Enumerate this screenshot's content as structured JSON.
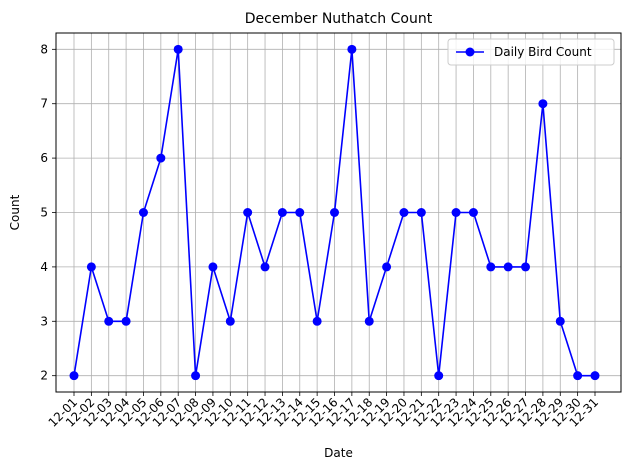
{
  "chart_data": {
    "type": "line",
    "title": "December Nuthatch Count",
    "xlabel": "Date",
    "ylabel": "Count",
    "x": [
      "12-01",
      "12-02",
      "12-03",
      "12-04",
      "12-05",
      "12-06",
      "12-07",
      "12-08",
      "12-09",
      "12-10",
      "12-11",
      "12-12",
      "12-13",
      "12-14",
      "12-15",
      "12-16",
      "12-17",
      "12-18",
      "12-19",
      "12-20",
      "12-21",
      "12-22",
      "12-23",
      "12-24",
      "12-25",
      "12-26",
      "12-27",
      "12-28",
      "12-29",
      "12-30",
      "12-31"
    ],
    "series": [
      {
        "name": "Daily Bird Count",
        "color": "#0000ff",
        "marker": "circle",
        "values": [
          2,
          4,
          3,
          3,
          5,
          6,
          8,
          2,
          4,
          3,
          5,
          4,
          5,
          5,
          3,
          5,
          8,
          3,
          4,
          5,
          5,
          2,
          5,
          5,
          4,
          4,
          4,
          7,
          3,
          2,
          2
        ]
      }
    ],
    "ylim": [
      1.7,
      8.3
    ],
    "yticks": [
      2,
      3,
      4,
      5,
      6,
      7,
      8
    ],
    "grid": true,
    "legend_position": "top-right"
  }
}
